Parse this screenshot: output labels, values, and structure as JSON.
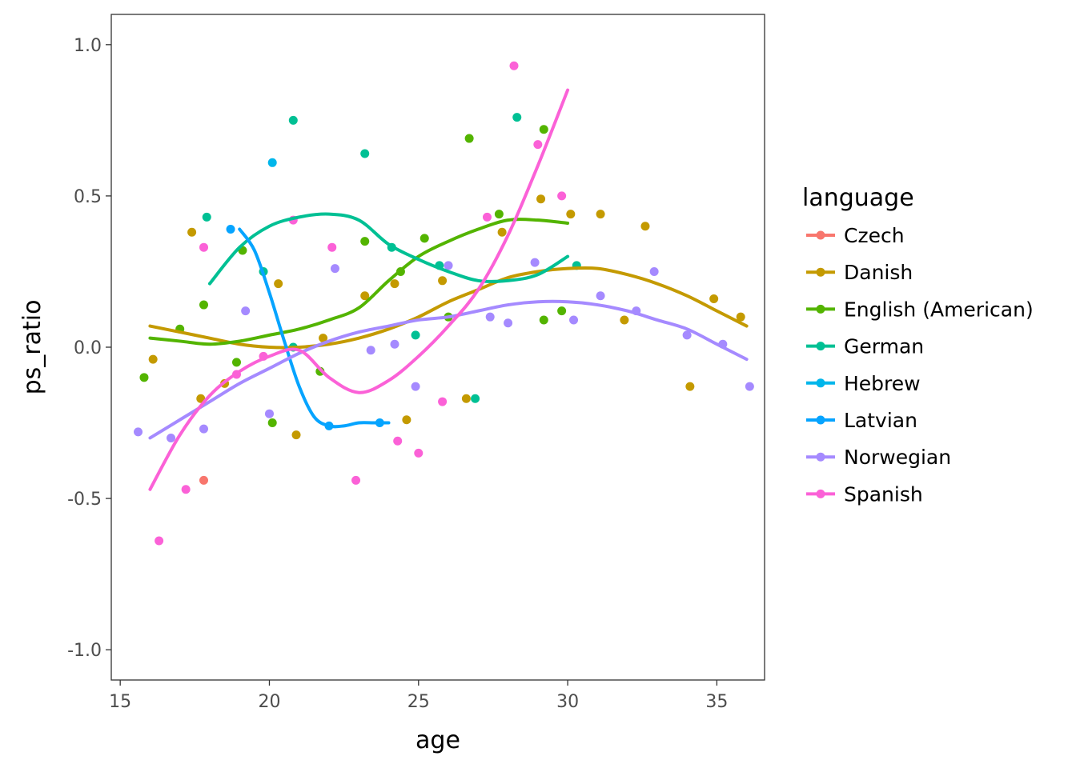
{
  "chart_data": {
    "type": "scatter",
    "xlabel": "age",
    "ylabel": "ps_ratio",
    "xlim": [
      14.7,
      36.6
    ],
    "ylim": [
      -1.1,
      1.1
    ],
    "xticks": [
      15,
      20,
      25,
      30,
      35
    ],
    "yticks": [
      -1.0,
      -0.5,
      0.0,
      0.5,
      1.0
    ],
    "ytick_labels": [
      "-1.0",
      "-0.5",
      "0.0",
      "0.5",
      "1.0"
    ],
    "grid": false,
    "legend": {
      "title": "language",
      "placement": "right"
    },
    "series": [
      {
        "name": "Czech",
        "color": "#F8766D",
        "points": [
          [
            17.8,
            -0.44
          ]
        ],
        "smooth": []
      },
      {
        "name": "Danish",
        "color": "#C49A00",
        "points": [
          [
            16.1,
            -0.04
          ],
          [
            17.4,
            0.38
          ],
          [
            17.7,
            -0.17
          ],
          [
            18.5,
            -0.12
          ],
          [
            20.3,
            0.21
          ],
          [
            20.9,
            -0.29
          ],
          [
            21.8,
            0.03
          ],
          [
            23.2,
            0.17
          ],
          [
            24.2,
            0.21
          ],
          [
            24.6,
            -0.24
          ],
          [
            25.8,
            0.22
          ],
          [
            26.6,
            -0.17
          ],
          [
            27.8,
            0.38
          ],
          [
            29.1,
            0.49
          ],
          [
            30.1,
            0.44
          ],
          [
            31.1,
            0.44
          ],
          [
            31.9,
            0.09
          ],
          [
            32.6,
            0.4
          ],
          [
            34.1,
            -0.13
          ],
          [
            34.9,
            0.16
          ],
          [
            35.8,
            0.1
          ]
        ],
        "smooth": [
          [
            16.0,
            0.07
          ],
          [
            17.0,
            0.05
          ],
          [
            18.0,
            0.03
          ],
          [
            19.0,
            0.01
          ],
          [
            20.0,
            0.0
          ],
          [
            21.0,
            0.0
          ],
          [
            22.0,
            0.01
          ],
          [
            23.0,
            0.03
          ],
          [
            24.0,
            0.06
          ],
          [
            25.0,
            0.1
          ],
          [
            26.0,
            0.15
          ],
          [
            27.0,
            0.19
          ],
          [
            28.0,
            0.23
          ],
          [
            29.0,
            0.25
          ],
          [
            30.0,
            0.26
          ],
          [
            31.0,
            0.26
          ],
          [
            32.0,
            0.24
          ],
          [
            33.0,
            0.21
          ],
          [
            34.0,
            0.17
          ],
          [
            35.0,
            0.12
          ],
          [
            36.0,
            0.07
          ]
        ]
      },
      {
        "name": "English (American)",
        "color": "#53B400",
        "points": [
          [
            15.8,
            -0.1
          ],
          [
            17.0,
            0.06
          ],
          [
            17.8,
            0.14
          ],
          [
            18.9,
            -0.05
          ],
          [
            19.1,
            0.32
          ],
          [
            20.1,
            -0.25
          ],
          [
            21.7,
            -0.08
          ],
          [
            23.2,
            0.35
          ],
          [
            24.4,
            0.25
          ],
          [
            25.2,
            0.36
          ],
          [
            26.0,
            0.1
          ],
          [
            26.7,
            0.69
          ],
          [
            27.7,
            0.44
          ],
          [
            29.2,
            0.72
          ],
          [
            29.2,
            0.09
          ],
          [
            29.8,
            0.12
          ]
        ],
        "smooth": [
          [
            16.0,
            0.03
          ],
          [
            17.0,
            0.02
          ],
          [
            18.0,
            0.01
          ],
          [
            19.0,
            0.02
          ],
          [
            20.0,
            0.04
          ],
          [
            21.0,
            0.06
          ],
          [
            22.0,
            0.09
          ],
          [
            23.0,
            0.13
          ],
          [
            24.0,
            0.22
          ],
          [
            25.0,
            0.3
          ],
          [
            26.0,
            0.35
          ],
          [
            27.0,
            0.39
          ],
          [
            28.0,
            0.42
          ],
          [
            29.0,
            0.42
          ],
          [
            30.0,
            0.41
          ]
        ]
      },
      {
        "name": "German",
        "color": "#00C094",
        "points": [
          [
            17.9,
            0.43
          ],
          [
            19.8,
            0.25
          ],
          [
            20.8,
            0.75
          ],
          [
            20.8,
            0.0
          ],
          [
            23.2,
            0.64
          ],
          [
            24.1,
            0.33
          ],
          [
            24.9,
            0.04
          ],
          [
            25.7,
            0.27
          ],
          [
            26.9,
            -0.17
          ],
          [
            28.3,
            0.76
          ],
          [
            30.3,
            0.27
          ]
        ],
        "smooth": [
          [
            18.0,
            0.21
          ],
          [
            19.0,
            0.33
          ],
          [
            20.0,
            0.4
          ],
          [
            21.0,
            0.43
          ],
          [
            22.0,
            0.44
          ],
          [
            23.0,
            0.42
          ],
          [
            24.0,
            0.34
          ],
          [
            25.0,
            0.29
          ],
          [
            26.0,
            0.25
          ],
          [
            27.0,
            0.22
          ],
          [
            28.0,
            0.22
          ],
          [
            29.0,
            0.24
          ],
          [
            30.0,
            0.3
          ]
        ]
      },
      {
        "name": "Hebrew",
        "color": "#00B6EB",
        "points": [
          [
            20.1,
            0.61
          ]
        ],
        "smooth": []
      },
      {
        "name": "Latvian",
        "color": "#06A4FF",
        "points": [
          [
            18.7,
            0.39
          ],
          [
            22.0,
            -0.26
          ],
          [
            23.7,
            -0.25
          ]
        ],
        "smooth": [
          [
            19.0,
            0.39
          ],
          [
            19.5,
            0.32
          ],
          [
            20.0,
            0.18
          ],
          [
            20.5,
            0.02
          ],
          [
            21.0,
            -0.13
          ],
          [
            21.5,
            -0.23
          ],
          [
            22.0,
            -0.26
          ],
          [
            22.5,
            -0.26
          ],
          [
            23.0,
            -0.25
          ],
          [
            23.5,
            -0.25
          ],
          [
            24.0,
            -0.25
          ]
        ]
      },
      {
        "name": "Norwegian",
        "color": "#A58AFF",
        "points": [
          [
            15.6,
            -0.28
          ],
          [
            16.7,
            -0.3
          ],
          [
            17.8,
            -0.27
          ],
          [
            19.2,
            0.12
          ],
          [
            20.0,
            -0.22
          ],
          [
            22.2,
            0.26
          ],
          [
            23.4,
            -0.01
          ],
          [
            24.2,
            0.01
          ],
          [
            24.9,
            -0.13
          ],
          [
            26.0,
            0.27
          ],
          [
            27.4,
            0.1
          ],
          [
            28.0,
            0.08
          ],
          [
            28.9,
            0.28
          ],
          [
            30.2,
            0.09
          ],
          [
            31.1,
            0.17
          ],
          [
            32.3,
            0.12
          ],
          [
            32.9,
            0.25
          ],
          [
            34.0,
            0.04
          ],
          [
            35.2,
            0.01
          ],
          [
            36.1,
            -0.13
          ]
        ],
        "smooth": [
          [
            16.0,
            -0.3
          ],
          [
            17.0,
            -0.24
          ],
          [
            18.0,
            -0.18
          ],
          [
            19.0,
            -0.12
          ],
          [
            20.0,
            -0.07
          ],
          [
            21.0,
            -0.02
          ],
          [
            22.0,
            0.02
          ],
          [
            23.0,
            0.05
          ],
          [
            24.0,
            0.07
          ],
          [
            25.0,
            0.09
          ],
          [
            26.0,
            0.1
          ],
          [
            27.0,
            0.12
          ],
          [
            28.0,
            0.14
          ],
          [
            29.0,
            0.15
          ],
          [
            30.0,
            0.15
          ],
          [
            31.0,
            0.14
          ],
          [
            32.0,
            0.12
          ],
          [
            33.0,
            0.09
          ],
          [
            34.0,
            0.06
          ],
          [
            35.0,
            0.01
          ],
          [
            36.0,
            -0.04
          ]
        ]
      },
      {
        "name": "Spanish",
        "color": "#FB61D7",
        "points": [
          [
            16.3,
            -0.64
          ],
          [
            17.2,
            -0.47
          ],
          [
            17.8,
            0.33
          ],
          [
            18.9,
            -0.09
          ],
          [
            19.8,
            -0.03
          ],
          [
            20.8,
            0.42
          ],
          [
            22.1,
            0.33
          ],
          [
            22.9,
            -0.44
          ],
          [
            24.3,
            -0.31
          ],
          [
            25.0,
            -0.35
          ],
          [
            25.8,
            -0.18
          ],
          [
            27.3,
            0.43
          ],
          [
            28.2,
            0.93
          ],
          [
            29.0,
            0.67
          ],
          [
            29.8,
            0.5
          ]
        ],
        "smooth": [
          [
            16.0,
            -0.47
          ],
          [
            17.0,
            -0.29
          ],
          [
            18.0,
            -0.16
          ],
          [
            19.0,
            -0.08
          ],
          [
            20.0,
            -0.03
          ],
          [
            21.0,
            -0.01
          ],
          [
            22.0,
            -0.1
          ],
          [
            23.0,
            -0.15
          ],
          [
            24.0,
            -0.11
          ],
          [
            25.0,
            -0.03
          ],
          [
            26.0,
            0.07
          ],
          [
            27.0,
            0.19
          ],
          [
            28.0,
            0.37
          ],
          [
            29.0,
            0.6
          ],
          [
            30.0,
            0.85
          ]
        ]
      }
    ]
  }
}
